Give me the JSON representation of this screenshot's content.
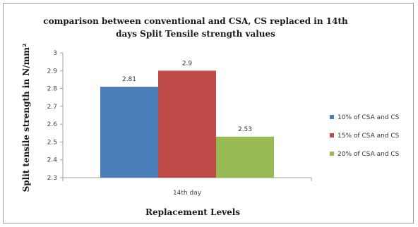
{
  "chart_data": {
    "type": "bar",
    "title_lines": [
      "comparison between conventional and CSA, CS replaced in 14th",
      "days Split Tensile strength values"
    ],
    "xlabel": "Replacement Levels",
    "ylabel": "Split tensile strength in N/mm²",
    "categories": [
      "14th day"
    ],
    "ylim": [
      2.3,
      3.0
    ],
    "yticks": [
      "2.3",
      "2.4",
      "2.5",
      "2.6",
      "2.7",
      "2.8",
      "2.9",
      "3"
    ],
    "grid": false,
    "legend_position": "right",
    "series": [
      {
        "name": "10% of CSA and CS",
        "values": [
          2.81
        ],
        "label": "2.81",
        "color": "#4a7ebb"
      },
      {
        "name": "15% of CSA and CS",
        "values": [
          2.9
        ],
        "label": "2.9",
        "color": "#be4b48"
      },
      {
        "name": "20% of CSA and CS",
        "values": [
          2.53
        ],
        "label": "2.53",
        "color": "#98b954"
      }
    ]
  }
}
